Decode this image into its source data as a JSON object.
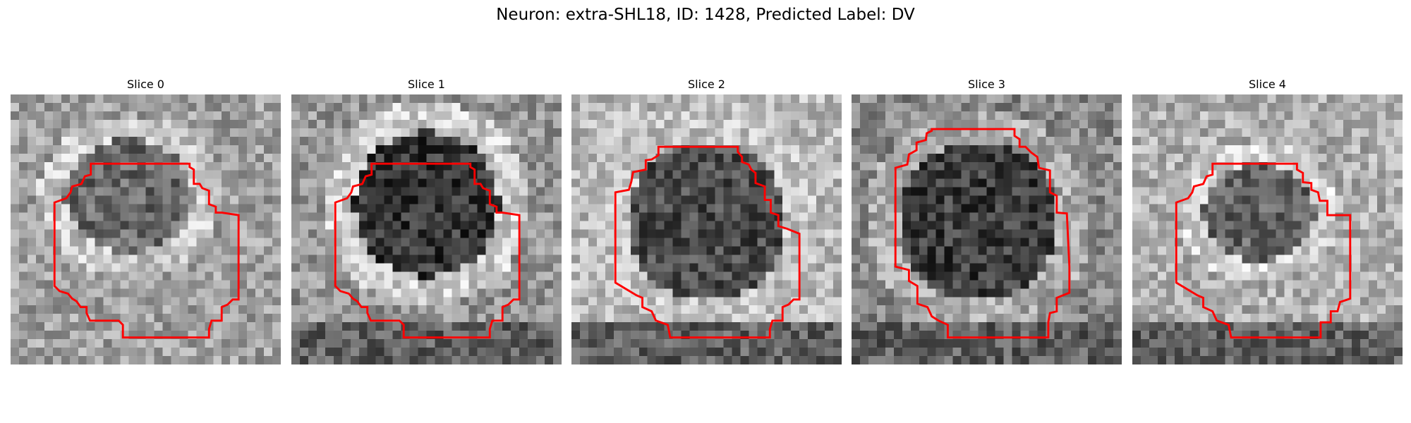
{
  "figure": {
    "title": "Neuron: extra-SHL18, ID: 1428, Predicted Label: DV"
  },
  "contour_color": "#ff0000",
  "slices": [
    {
      "title": "Slice 0"
    },
    {
      "title": "Slice 1"
    },
    {
      "title": "Slice 2"
    },
    {
      "title": "Slice 3"
    },
    {
      "title": "Slice 4"
    }
  ]
}
